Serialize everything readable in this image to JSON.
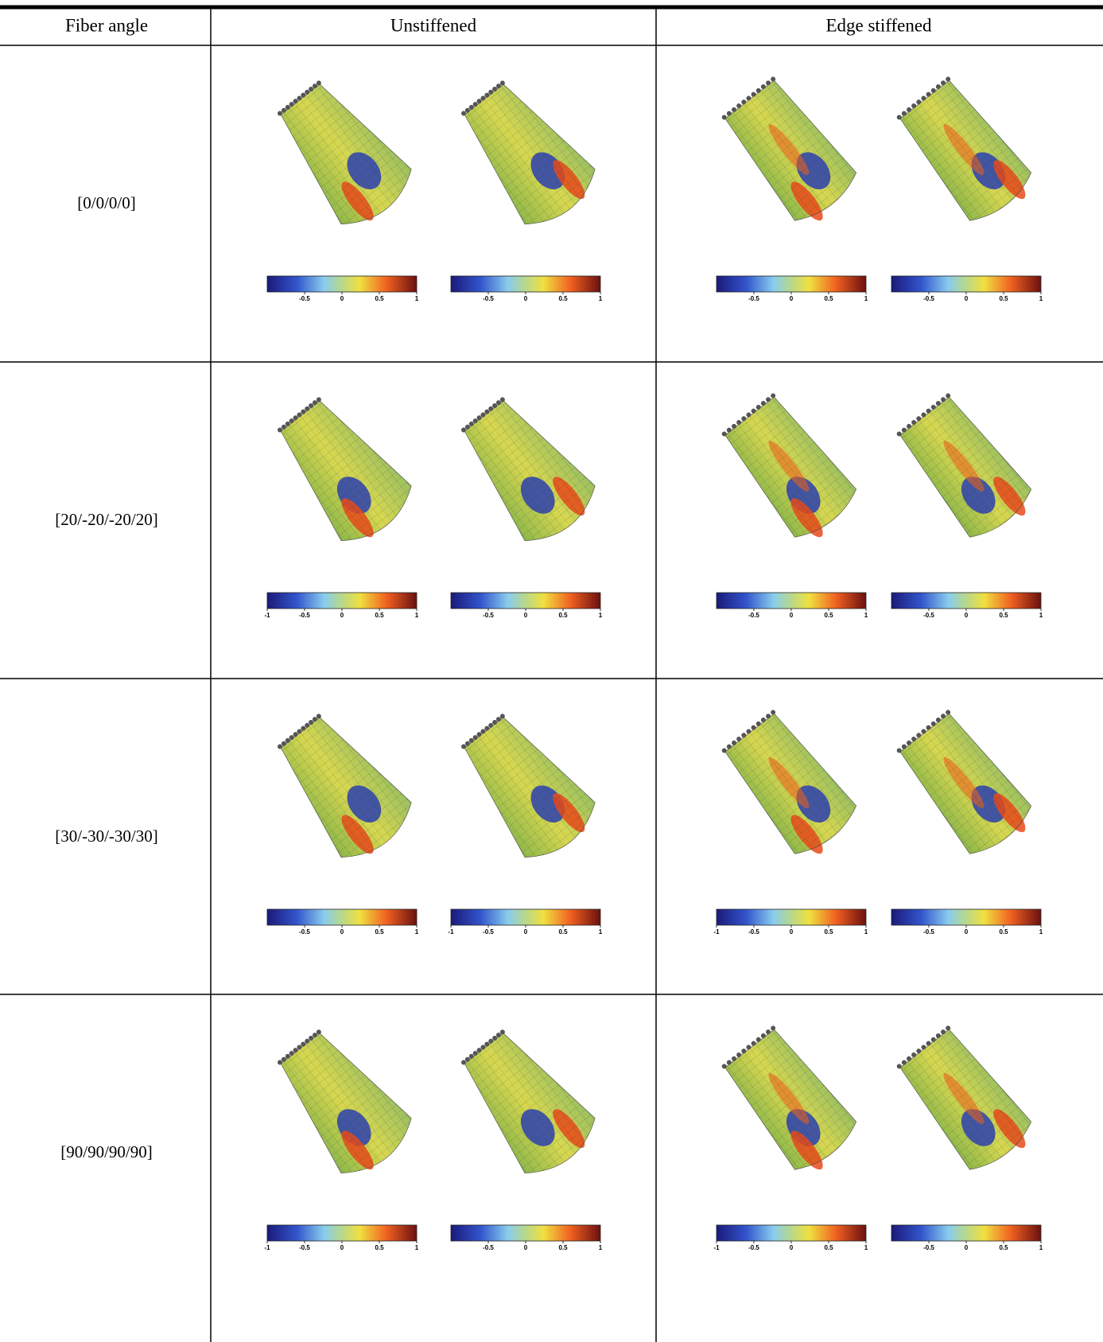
{
  "header": {
    "columns": [
      "Fiber angle",
      "Unstiffened",
      "Edge stiffened"
    ]
  },
  "rows": [
    {
      "label": "[0/0/0/0]",
      "plots": [
        {
          "colorbar_ticks": [
            "-0.5",
            "0",
            "0.5",
            "1"
          ]
        },
        {
          "colorbar_ticks": [
            "-0.5",
            "0",
            "0.5",
            "1"
          ]
        },
        {
          "colorbar_ticks": [
            "-0.5",
            "0",
            "0.5",
            "1"
          ]
        },
        {
          "colorbar_ticks": [
            "-0.5",
            "0",
            "0.5",
            "1"
          ]
        }
      ]
    },
    {
      "label": "[20/-20/-20/20]",
      "plots": [
        {
          "colorbar_ticks": [
            "-1",
            "-0.5",
            "0",
            "0.5",
            "1"
          ]
        },
        {
          "colorbar_ticks": [
            "-0.5",
            "0",
            "0.5",
            "1"
          ]
        },
        {
          "colorbar_ticks": [
            "-0.5",
            "0",
            "0.5",
            "1"
          ]
        },
        {
          "colorbar_ticks": [
            "-0.5",
            "0",
            "0.5",
            "1"
          ]
        }
      ]
    },
    {
      "label": "[30/-30/-30/30]",
      "plots": [
        {
          "colorbar_ticks": [
            "-0.5",
            "0",
            "0.5",
            "1"
          ]
        },
        {
          "colorbar_ticks": [
            "-1",
            "-0.5",
            "0",
            "0.5",
            "1"
          ]
        },
        {
          "colorbar_ticks": [
            "-1",
            "-0.5",
            "0",
            "0.5",
            "1"
          ]
        },
        {
          "colorbar_ticks": [
            "-0.5",
            "0",
            "0.5",
            "1"
          ]
        }
      ]
    },
    {
      "label": "[90/90/90/90]",
      "plots": [
        {
          "colorbar_ticks": [
            "-1",
            "-0.5",
            "0",
            "0.5",
            "1"
          ]
        },
        {
          "colorbar_ticks": [
            "-0.5",
            "0",
            "0.5",
            "1"
          ]
        },
        {
          "colorbar_ticks": [
            "-1",
            "-0.5",
            "0",
            "0.5",
            "1"
          ]
        },
        {
          "colorbar_ticks": [
            "-0.5",
            "0",
            "0.5",
            "1"
          ]
        }
      ]
    }
  ]
}
